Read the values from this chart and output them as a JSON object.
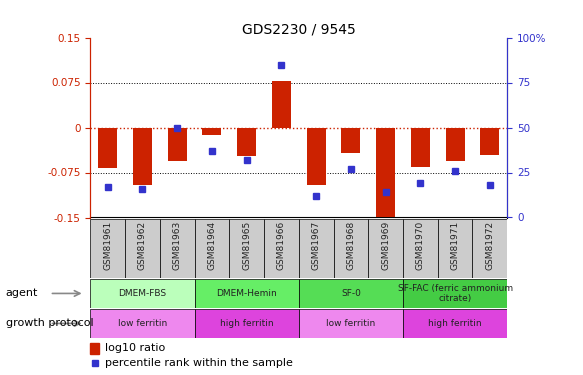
{
  "title": "GDS2230 / 9545",
  "samples": [
    "GSM81961",
    "GSM81962",
    "GSM81963",
    "GSM81964",
    "GSM81965",
    "GSM81966",
    "GSM81967",
    "GSM81968",
    "GSM81969",
    "GSM81970",
    "GSM81971",
    "GSM81972"
  ],
  "log10_ratio": [
    -0.068,
    -0.095,
    -0.055,
    -0.012,
    -0.048,
    0.078,
    -0.095,
    -0.042,
    -0.155,
    -0.065,
    -0.055,
    -0.045
  ],
  "percentile_rank": [
    17,
    16,
    50,
    37,
    32,
    85,
    12,
    27,
    14,
    19,
    26,
    18
  ],
  "ylim": [
    -0.15,
    0.15
  ],
  "yticks_left": [
    -0.15,
    -0.075,
    0,
    0.075,
    0.15
  ],
  "yticks_right": [
    0,
    25,
    50,
    75,
    100
  ],
  "bar_color": "#cc2200",
  "dot_color": "#3333cc",
  "agent_groups": [
    {
      "label": "DMEM-FBS",
      "start": 0,
      "end": 2,
      "color": "#bbffbb"
    },
    {
      "label": "DMEM-Hemin",
      "start": 3,
      "end": 5,
      "color": "#66ee66"
    },
    {
      "label": "SF-0",
      "start": 6,
      "end": 8,
      "color": "#55dd55"
    },
    {
      "label": "SF-FAC (ferric ammonium\ncitrate)",
      "start": 9,
      "end": 11,
      "color": "#44cc44"
    }
  ],
  "growth_groups": [
    {
      "label": "low ferritin",
      "start": 0,
      "end": 2,
      "color": "#ee88ee"
    },
    {
      "label": "high ferritin",
      "start": 3,
      "end": 5,
      "color": "#dd44dd"
    },
    {
      "label": "low ferritin",
      "start": 6,
      "end": 8,
      "color": "#ee88ee"
    },
    {
      "label": "high ferritin",
      "start": 9,
      "end": 11,
      "color": "#dd44dd"
    }
  ],
  "legend_bar_label": "log10 ratio",
  "legend_dot_label": "percentile rank within the sample",
  "agent_label": "agent",
  "growth_label": "growth protocol",
  "left_axis_color": "#cc2200",
  "right_axis_color": "#3333cc",
  "xtick_cell_color": "#cccccc"
}
